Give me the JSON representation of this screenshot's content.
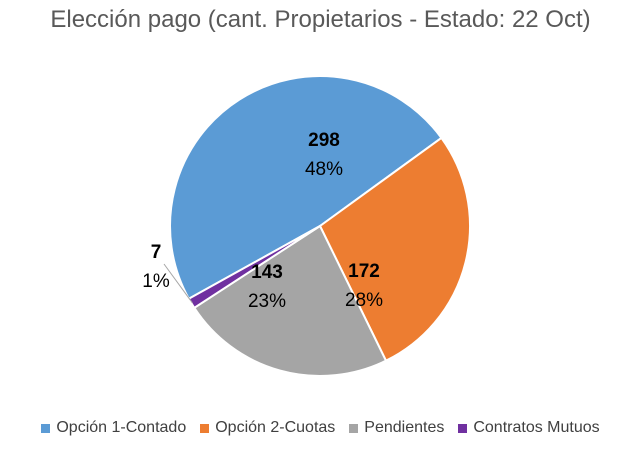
{
  "chart_data": {
    "type": "pie",
    "title": "Elección pago (cant. Propietarios - Estado: 22 Oct)",
    "categories": [
      "Opción 1-Contado",
      "Opción 2-Cuotas",
      "Pendientes",
      "Contratos Mutuos"
    ],
    "values": [
      298,
      172,
      143,
      7
    ],
    "percent_labels": [
      "48%",
      "28%",
      "23%",
      "1%"
    ],
    "value_labels": [
      "298",
      "172",
      "143",
      "7"
    ],
    "colors": [
      "#5B9BD5",
      "#ED7D31",
      "#A5A5A5",
      "#7030A0"
    ],
    "legend_position": "bottom",
    "data_labels": true
  }
}
